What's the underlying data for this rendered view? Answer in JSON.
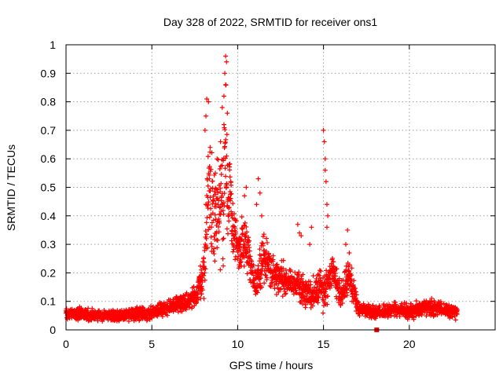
{
  "chart_data": {
    "type": "scatter",
    "title": "Day 328 of 2022, SRMTID for receiver ons1",
    "xlabel": "GPS time / hours",
    "ylabel": "SRMTID / TECUs",
    "xlim": [
      0,
      25
    ],
    "ylim": [
      0,
      1
    ],
    "xticks": [
      "0",
      "5",
      "10",
      "15",
      "20"
    ],
    "yticks": [
      "0",
      "0.1",
      "0.2",
      "0.3",
      "0.4",
      "0.5",
      "0.6",
      "0.7",
      "0.8",
      "0.9",
      "1"
    ],
    "grid": true,
    "marker": "plus",
    "color": "#ff0000",
    "series": [
      {
        "name": "SRMTID",
        "envelope": [
          {
            "x": 0.0,
            "mean": 0.06,
            "spread": 0.03
          },
          {
            "x": 1.0,
            "mean": 0.055,
            "spread": 0.03
          },
          {
            "x": 2.0,
            "mean": 0.05,
            "spread": 0.025
          },
          {
            "x": 3.0,
            "mean": 0.05,
            "spread": 0.03
          },
          {
            "x": 4.0,
            "mean": 0.055,
            "spread": 0.03
          },
          {
            "x": 5.0,
            "mean": 0.06,
            "spread": 0.03
          },
          {
            "x": 6.0,
            "mean": 0.08,
            "spread": 0.035
          },
          {
            "x": 7.0,
            "mean": 0.1,
            "spread": 0.04
          },
          {
            "x": 7.6,
            "mean": 0.12,
            "spread": 0.05
          },
          {
            "x": 8.0,
            "mean": 0.2,
            "spread": 0.12
          },
          {
            "x": 8.3,
            "mean": 0.45,
            "spread": 0.3
          },
          {
            "x": 8.6,
            "mean": 0.4,
            "spread": 0.25
          },
          {
            "x": 9.0,
            "mean": 0.45,
            "spread": 0.3
          },
          {
            "x": 9.3,
            "mean": 0.55,
            "spread": 0.35
          },
          {
            "x": 9.6,
            "mean": 0.4,
            "spread": 0.2
          },
          {
            "x": 10.0,
            "mean": 0.28,
            "spread": 0.1
          },
          {
            "x": 10.5,
            "mean": 0.3,
            "spread": 0.12
          },
          {
            "x": 11.0,
            "mean": 0.15,
            "spread": 0.06
          },
          {
            "x": 11.5,
            "mean": 0.25,
            "spread": 0.15
          },
          {
            "x": 12.0,
            "mean": 0.2,
            "spread": 0.08
          },
          {
            "x": 12.5,
            "mean": 0.18,
            "spread": 0.1
          },
          {
            "x": 13.0,
            "mean": 0.17,
            "spread": 0.06
          },
          {
            "x": 13.5,
            "mean": 0.15,
            "spread": 0.08
          },
          {
            "x": 14.0,
            "mean": 0.13,
            "spread": 0.07
          },
          {
            "x": 14.5,
            "mean": 0.13,
            "spread": 0.07
          },
          {
            "x": 15.0,
            "mean": 0.15,
            "spread": 0.1
          },
          {
            "x": 15.5,
            "mean": 0.2,
            "spread": 0.1
          },
          {
            "x": 16.0,
            "mean": 0.12,
            "spread": 0.06
          },
          {
            "x": 16.5,
            "mean": 0.18,
            "spread": 0.1
          },
          {
            "x": 17.0,
            "mean": 0.08,
            "spread": 0.04
          },
          {
            "x": 18.0,
            "mean": 0.06,
            "spread": 0.03
          },
          {
            "x": 19.0,
            "mean": 0.07,
            "spread": 0.035
          },
          {
            "x": 20.0,
            "mean": 0.065,
            "spread": 0.035
          },
          {
            "x": 21.0,
            "mean": 0.08,
            "spread": 0.04
          },
          {
            "x": 22.0,
            "mean": 0.07,
            "spread": 0.035
          },
          {
            "x": 22.8,
            "mean": 0.06,
            "spread": 0.03
          }
        ],
        "peaks": [
          {
            "x": 8.2,
            "y": 0.81
          },
          {
            "x": 8.3,
            "y": 0.8
          },
          {
            "x": 8.15,
            "y": 0.75
          },
          {
            "x": 8.1,
            "y": 0.7
          },
          {
            "x": 8.4,
            "y": 0.64
          },
          {
            "x": 8.8,
            "y": 0.6
          },
          {
            "x": 9.0,
            "y": 0.66
          },
          {
            "x": 9.1,
            "y": 0.78
          },
          {
            "x": 9.2,
            "y": 0.82
          },
          {
            "x": 9.25,
            "y": 0.9
          },
          {
            "x": 9.3,
            "y": 0.96
          },
          {
            "x": 9.35,
            "y": 0.94
          },
          {
            "x": 9.3,
            "y": 0.86
          },
          {
            "x": 9.4,
            "y": 0.76
          },
          {
            "x": 9.2,
            "y": 0.72
          },
          {
            "x": 8.7,
            "y": 0.55
          },
          {
            "x": 9.5,
            "y": 0.58
          },
          {
            "x": 9.6,
            "y": 0.52
          },
          {
            "x": 10.5,
            "y": 0.5
          },
          {
            "x": 10.4,
            "y": 0.47
          },
          {
            "x": 11.2,
            "y": 0.53
          },
          {
            "x": 11.3,
            "y": 0.48
          },
          {
            "x": 11.1,
            "y": 0.44
          },
          {
            "x": 11.4,
            "y": 0.4
          },
          {
            "x": 13.5,
            "y": 0.37
          },
          {
            "x": 13.6,
            "y": 0.34
          },
          {
            "x": 13.7,
            "y": 0.33
          },
          {
            "x": 14.3,
            "y": 0.36
          },
          {
            "x": 14.2,
            "y": 0.3
          },
          {
            "x": 15.0,
            "y": 0.7
          },
          {
            "x": 15.05,
            "y": 0.66
          },
          {
            "x": 15.1,
            "y": 0.6
          },
          {
            "x": 15.1,
            "y": 0.56
          },
          {
            "x": 15.15,
            "y": 0.52
          },
          {
            "x": 15.2,
            "y": 0.44
          },
          {
            "x": 15.25,
            "y": 0.4
          },
          {
            "x": 15.2,
            "y": 0.36
          },
          {
            "x": 16.4,
            "y": 0.35
          },
          {
            "x": 16.3,
            "y": 0.3
          },
          {
            "x": 16.5,
            "y": 0.27
          }
        ],
        "highlight": {
          "x": 18.1,
          "y": 0.0,
          "marker": "square"
        }
      }
    ]
  }
}
